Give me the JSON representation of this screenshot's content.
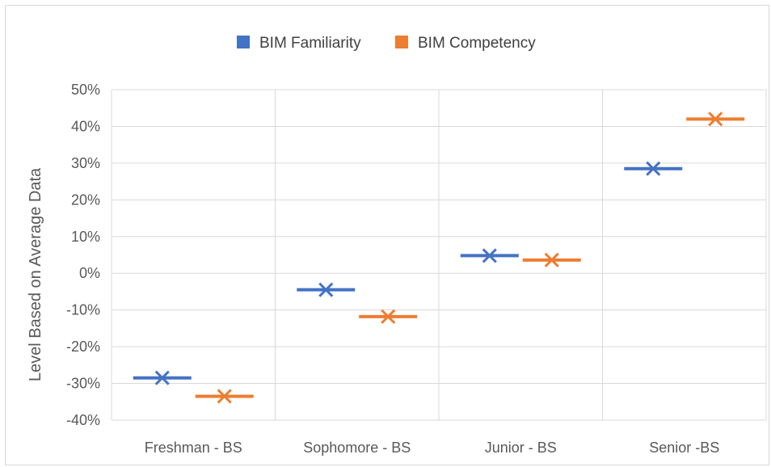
{
  "chart_data": {
    "type": "scatter",
    "title": "",
    "xlabel": "",
    "ylabel": "Level Based on Average Data",
    "categories": [
      "Freshman - BS",
      "Sophomore - BS",
      "Junior - BS",
      "Senior -BS"
    ],
    "ylim": [
      -40,
      50
    ],
    "ytick_step": 10,
    "ytick_labels": [
      "50%",
      "40%",
      "30%",
      "20%",
      "10%",
      "0%",
      "-10%",
      "-20%",
      "-30%",
      "-40%"
    ],
    "grid": "horizontal and vertical",
    "legend_position": "top",
    "marker": "x with horizontal dash",
    "series": [
      {
        "name": "BIM Familiarity",
        "color": "#4472C4",
        "values": [
          -28.5,
          -4.5,
          4.8,
          28.5
        ]
      },
      {
        "name": "BIM Competency",
        "color": "#ED7D31",
        "values": [
          -33.5,
          -11.8,
          3.6,
          42.0
        ]
      }
    ]
  }
}
